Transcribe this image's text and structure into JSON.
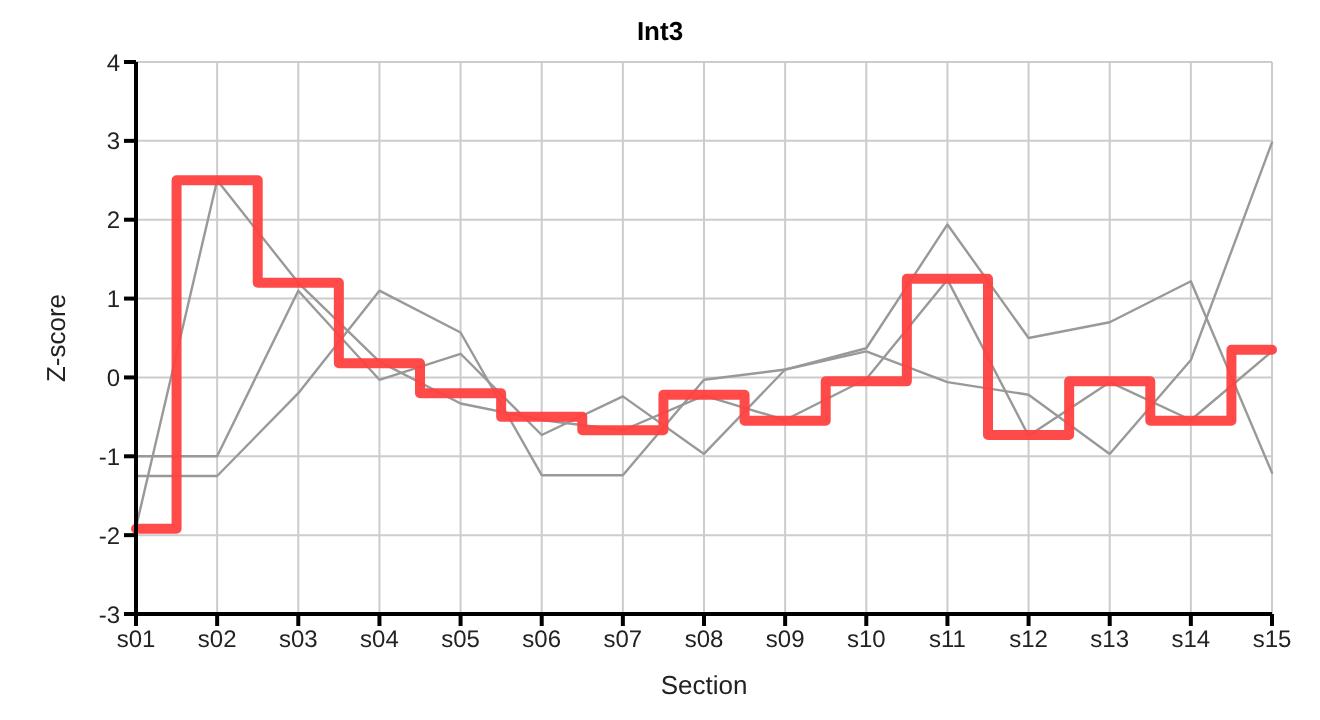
{
  "chart_data": {
    "type": "line",
    "title": "Int3",
    "xlabel": "Section",
    "ylabel": "Z-score",
    "categories": [
      "s01",
      "s02",
      "s03",
      "s04",
      "s05",
      "s06",
      "s07",
      "s08",
      "s09",
      "s10",
      "s11",
      "s12",
      "s13",
      "s14",
      "s15"
    ],
    "ylim": [
      -3,
      4
    ],
    "yticks": [
      -3,
      -2,
      -1,
      0,
      1,
      2,
      3,
      4
    ],
    "grid": true,
    "legend": false,
    "marker": "none",
    "line_style": "solid",
    "series": [
      {
        "color": "#999999",
        "values": [
          -1.9,
          2.5,
          1.2,
          0.2,
          -0.33,
          -0.54,
          -0.67,
          -0.23,
          -0.54,
          -0.02,
          1.24,
          -0.74,
          -0.06,
          -0.54,
          0.33
        ]
      },
      {
        "color": "#999999",
        "values": [
          -1.0,
          -1.0,
          1.1,
          -0.03,
          0.3,
          -0.73,
          -0.24,
          -0.97,
          0.1,
          0.33,
          -0.06,
          -0.22,
          -0.97,
          0.22,
          2.98
        ]
      },
      {
        "color": "#999999",
        "values": [
          -1.25,
          -1.25,
          -0.2,
          1.1,
          0.57,
          -1.24,
          -1.24,
          -0.03,
          0.1,
          0.37,
          1.94,
          0.5,
          0.7,
          1.22,
          -1.21
        ]
      },
      {
        "type": "step",
        "color": "#ff4040",
        "values": [
          -1.92,
          2.5,
          1.2,
          0.18,
          -0.2,
          -0.5,
          -0.67,
          -0.22,
          -0.55,
          -0.05,
          1.25,
          -0.73,
          -0.05,
          -0.55,
          0.35
        ]
      }
    ]
  }
}
